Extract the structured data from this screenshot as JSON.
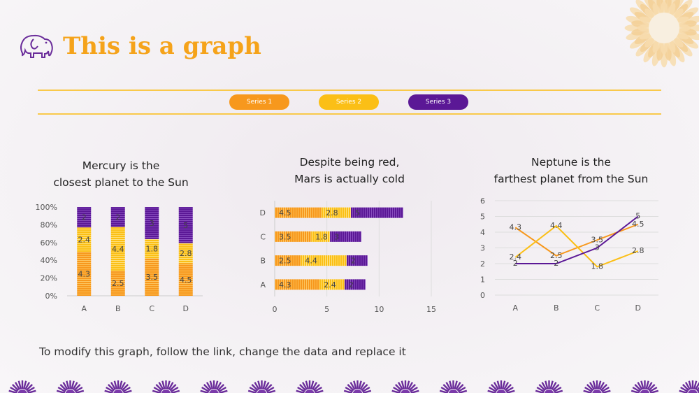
{
  "slide": {
    "title": "This is a graph",
    "footer": "To modify this graph, follow the link, change the data and replace it"
  },
  "legend": {
    "items": [
      {
        "label": "Series 1",
        "color": "#f7981d"
      },
      {
        "label": "Series 2",
        "color": "#fbbf16"
      },
      {
        "label": "Series 3",
        "color": "#5b1896"
      }
    ]
  },
  "colors": {
    "accent": "#f5a31a",
    "purple": "#5b1896",
    "gold": "#f9c94a"
  },
  "chart_data": [
    {
      "type": "bar",
      "variant": "stacked-100",
      "title_lines": [
        "Mercury is the",
        "closest planet to the Sun"
      ],
      "categories": [
        "A",
        "B",
        "C",
        "D"
      ],
      "series": [
        {
          "name": "Series 1",
          "values": [
            4.3,
            2.5,
            3.5,
            4.5
          ]
        },
        {
          "name": "Series 2",
          "values": [
            2.4,
            4.4,
            1.8,
            2.8
          ]
        },
        {
          "name": "Series 3",
          "values": [
            2,
            2,
            3,
            5
          ]
        }
      ],
      "yticks": [
        "0%",
        "20%",
        "40%",
        "60%",
        "80%",
        "100%"
      ]
    },
    {
      "type": "bar",
      "variant": "stacked-horizontal",
      "title_lines": [
        "Despite being red,",
        "Mars is actually cold"
      ],
      "categories": [
        "A",
        "B",
        "C",
        "D"
      ],
      "series": [
        {
          "name": "Series 1",
          "values": [
            4.3,
            2.5,
            3.5,
            4.5
          ]
        },
        {
          "name": "Series 2",
          "values": [
            2.4,
            4.4,
            1.8,
            2.8
          ]
        },
        {
          "name": "Series 3",
          "values": [
            2,
            2,
            3,
            5
          ]
        }
      ],
      "xlim": [
        0,
        15
      ],
      "xticks": [
        "0",
        "5",
        "10",
        "15"
      ]
    },
    {
      "type": "line",
      "title_lines": [
        "Neptune is the",
        "farthest planet from the Sun"
      ],
      "categories": [
        "A",
        "B",
        "C",
        "D"
      ],
      "series": [
        {
          "name": "Series 1",
          "values": [
            4.3,
            2.5,
            3.5,
            4.5
          ]
        },
        {
          "name": "Series 2",
          "values": [
            2.4,
            4.4,
            1.8,
            2.8
          ]
        },
        {
          "name": "Series 3",
          "values": [
            2,
            2,
            3,
            5
          ]
        }
      ],
      "ylim": [
        0,
        6
      ],
      "yticks": [
        "0",
        "1",
        "2",
        "3",
        "4",
        "5",
        "6"
      ]
    }
  ]
}
